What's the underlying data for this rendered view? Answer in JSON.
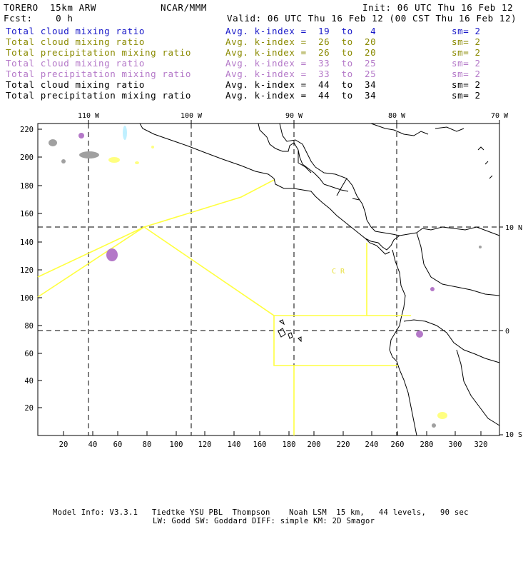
{
  "header": {
    "line1_left": "TORERO  15km ARW",
    "line1_center": "NCAR/MMM",
    "line1_right": "Init: 06 UTC Thu 16 Feb 12",
    "line2_left": "Fcst:    0 h",
    "line2_right": "Valid: 06 UTC Thu 16 Feb 12 (00 CST Thu 16 Feb 12)"
  },
  "fields": [
    {
      "name": "Total cloud mixing ratio",
      "range": "Avg. k-index =  19  to   4",
      "sm": "sm= 2",
      "color": "#1818c8"
    },
    {
      "name": "Total cloud mixing ratio",
      "range": "Avg. k-index =  26  to  20",
      "sm": "sm= 2",
      "color": "#8a8a00"
    },
    {
      "name": "Total precipitation mixing ratio",
      "range": "Avg. k-index =  26  to  20",
      "sm": "sm= 2",
      "color": "#8a8a00"
    },
    {
      "name": "Total cloud mixing ratio",
      "range": "Avg. k-index =  33  to  25",
      "sm": "sm= 2",
      "color": "#b478c8"
    },
    {
      "name": "Total precipitation mixing ratio",
      "range": "Avg. k-index =  33  to  25",
      "sm": "sm= 2",
      "color": "#b478c8"
    },
    {
      "name": "Total cloud mixing ratio",
      "range": "Avg. k-index =  44  to  34",
      "sm": "sm= 2",
      "color": "#000000"
    },
    {
      "name": "Total precipitation mixing ratio",
      "range": "Avg. k-index =  44  to  34",
      "sm": "sm= 2",
      "color": "#000000"
    }
  ],
  "map": {
    "lon_labels": [
      "110 W",
      "100 W",
      "90 W",
      "80 W",
      "70 W"
    ],
    "lat_labels": [
      "10 N",
      "0",
      "10 S"
    ],
    "x_ticks": [
      "20",
      "40",
      "60",
      "80",
      "100",
      "120",
      "140",
      "160",
      "180",
      "200",
      "220",
      "240",
      "260",
      "280",
      "300",
      "320"
    ],
    "y_ticks": [
      "20",
      "40",
      "60",
      "80",
      "100",
      "120",
      "140",
      "160",
      "180",
      "200",
      "220"
    ],
    "region_label": "C  R",
    "colors": {
      "boundary": "#ffff40",
      "grid": "#000000",
      "coast": "#000000",
      "purple": "#b478c8",
      "gray": "#a0a0a0",
      "yellow": "#ffff80",
      "cyan": "#c0f0ff"
    }
  },
  "footer": {
    "line1": "Model Info: V3.3.1   Tiedtke YSU PBL  Thompson    Noah LSM  15 km,   44 levels,   90 sec",
    "line2": "LW: Godd SW: Goddard DIFF: simple KM: 2D Smagor"
  }
}
